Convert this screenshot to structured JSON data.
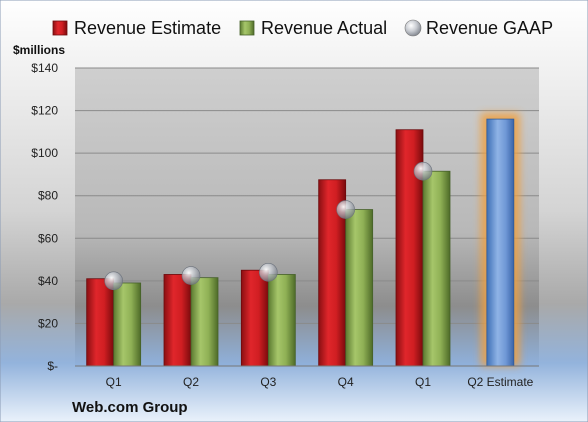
{
  "company": "Web.com Group",
  "chart_data": {
    "type": "bar",
    "unit_label": "$millions",
    "categories": [
      "Q1",
      "Q2",
      "Q3",
      "Q4",
      "Q1",
      "Q2 Estimate"
    ],
    "series": [
      {
        "name": "Revenue Estimate",
        "color": "#c0181c",
        "values": [
          41,
          43,
          45,
          87.5,
          111,
          null
        ]
      },
      {
        "name": "Revenue Actual",
        "color": "#7da347",
        "values": [
          39,
          41.5,
          43,
          73.5,
          91.5,
          null
        ]
      },
      {
        "name": "Revenue GAAP",
        "color": "#b8bcc4",
        "values": [
          40,
          42.5,
          44,
          73.5,
          91.5,
          null
        ]
      }
    ],
    "highlight": {
      "category": "Q2 Estimate",
      "value": 116,
      "color": "#5b8bd0",
      "glow": "#f0a040"
    },
    "y_ticks": [
      "$-",
      "$20",
      "$40",
      "$60",
      "$80",
      "$100",
      "$120",
      "$140"
    ],
    "y_tick_values": [
      0,
      20,
      40,
      60,
      80,
      100,
      120,
      140
    ],
    "ylim": [
      0,
      140
    ],
    "grid": true,
    "legend_position": "top"
  }
}
